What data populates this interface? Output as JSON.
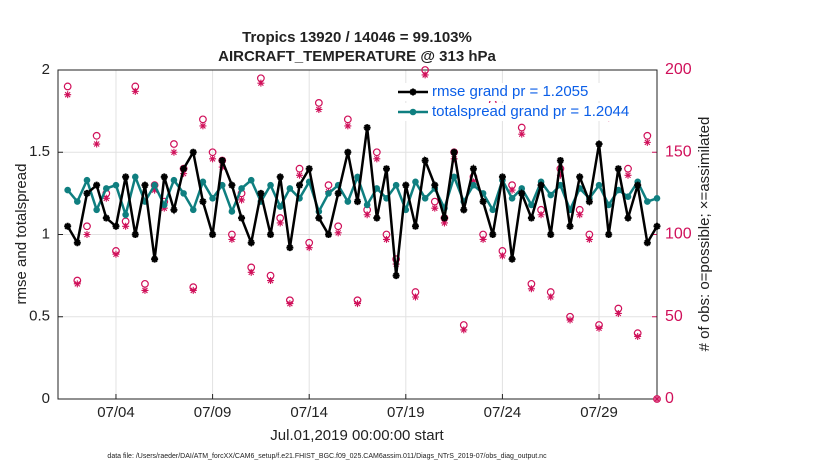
{
  "chart_data": {
    "type": "line",
    "title": "Tropics 13920 / 14046 = 99.103%",
    "subtitle": "AIRCRAFT_TEMPERATURE @ 313 hPa",
    "xlabel": "Jul.01,2019 00:00:00 start",
    "ylabel": "rmse and totalspread",
    "y2label": "# of obs: o=possible; ×=assimilated",
    "footnote": "data file: /Users/raeder/DAI/ATM_forcXX/CAM6_setup/f.e21.FHIST_BGC.f09_025.CAM6assim.011/Diags_NTrS_2019-07/obs_diag_output.nc",
    "xlim": [
      0,
      31
    ],
    "xticks": [
      {
        "value": 3,
        "label": "07/04"
      },
      {
        "value": 8,
        "label": "07/09"
      },
      {
        "value": 13,
        "label": "07/14"
      },
      {
        "value": 18,
        "label": "07/19"
      },
      {
        "value": 23,
        "label": "07/24"
      },
      {
        "value": 28,
        "label": "07/29"
      }
    ],
    "ylim": [
      0,
      2
    ],
    "yticks": [
      0,
      0.5,
      1,
      1.5,
      2
    ],
    "y2lim": [
      0,
      200
    ],
    "y2ticks": [
      0,
      50,
      100,
      150,
      200
    ],
    "grid": true,
    "legend": "northeast",
    "legend_text_color": "#0a5ee8",
    "x": [
      0.5,
      1,
      1.5,
      2,
      2.5,
      3,
      3.5,
      4,
      4.5,
      5,
      5.5,
      6,
      6.5,
      7,
      7.5,
      8,
      8.5,
      9,
      9.5,
      10,
      10.5,
      11,
      11.5,
      12,
      12.5,
      13,
      13.5,
      14,
      14.5,
      15,
      15.5,
      16,
      16.5,
      17,
      17.5,
      18,
      18.5,
      19,
      19.5,
      20,
      20.5,
      21,
      21.5,
      22,
      22.5,
      23,
      23.5,
      24,
      24.5,
      25,
      25.5,
      26,
      26.5,
      27,
      27.5,
      28,
      28.5,
      29,
      29.5,
      30,
      30.5,
      31
    ],
    "series": [
      {
        "name": "rmse grand pr = 1.2055",
        "color": "#000000",
        "marker": "star",
        "line": true,
        "values": [
          1.05,
          0.95,
          1.25,
          1.3,
          1.1,
          1.05,
          1.35,
          1.0,
          1.3,
          0.85,
          1.35,
          1.15,
          1.4,
          1.5,
          1.2,
          1.0,
          1.45,
          1.3,
          1.1,
          0.95,
          1.25,
          1.0,
          1.35,
          0.92,
          1.3,
          1.4,
          1.1,
          1.0,
          1.25,
          1.5,
          1.2,
          1.65,
          1.1,
          1.4,
          0.75,
          1.3,
          1.05,
          1.45,
          1.3,
          1.1,
          1.5,
          1.15,
          1.4,
          1.2,
          1.0,
          1.35,
          0.85,
          1.25,
          1.1,
          1.3,
          1.0,
          1.45,
          1.05,
          1.35,
          1.2,
          1.55,
          1.0,
          1.4,
          1.1,
          1.3,
          0.95,
          1.05
        ]
      },
      {
        "name": "totalspread grand pr = 1.2044",
        "color": "#0f7f80",
        "marker": "dot",
        "line": true,
        "values": [
          1.27,
          1.2,
          1.33,
          1.15,
          1.28,
          1.3,
          1.12,
          1.35,
          1.2,
          1.3,
          1.18,
          1.33,
          1.25,
          1.15,
          1.32,
          1.22,
          1.3,
          1.14,
          1.28,
          1.33,
          1.2,
          1.3,
          1.17,
          1.28,
          1.22,
          1.32,
          1.14,
          1.25,
          1.3,
          1.2,
          1.35,
          1.18,
          1.28,
          1.22,
          1.3,
          1.15,
          1.32,
          1.22,
          1.28,
          1.16,
          1.35,
          1.2,
          1.3,
          1.25,
          1.15,
          1.33,
          1.22,
          1.28,
          1.18,
          1.32,
          1.24,
          1.3,
          1.15,
          1.28,
          1.22,
          1.3,
          1.18,
          1.27,
          1.23,
          1.32,
          1.2,
          1.22
        ]
      },
      {
        "color": "#d0105a",
        "marker": "open-circle",
        "line": false,
        "axis": "y2",
        "values": [
          190,
          72,
          105,
          160,
          125,
          90,
          108,
          190,
          70,
          130,
          120,
          155,
          140,
          68,
          170,
          150,
          145,
          100,
          125,
          80,
          195,
          75,
          110,
          60,
          140,
          95,
          180,
          130,
          105,
          170,
          60,
          115,
          150,
          100,
          85,
          175,
          65,
          200,
          120,
          110,
          150,
          45,
          135,
          100,
          180,
          90,
          130,
          165,
          70,
          115,
          65,
          140,
          50,
          115,
          100,
          45,
          175,
          55,
          140,
          40,
          160,
          0
        ]
      },
      {
        "color": "#d0105a",
        "marker": "cross",
        "line": false,
        "axis": "y2",
        "values": [
          185,
          70,
          100,
          155,
          122,
          88,
          105,
          187,
          66,
          127,
          116,
          150,
          137,
          66,
          166,
          146,
          141,
          97,
          121,
          77,
          192,
          72,
          107,
          58,
          136,
          92,
          176,
          126,
          101,
          166,
          58,
          112,
          146,
          97,
          82,
          172,
          62,
          197,
          116,
          107,
          146,
          42,
          132,
          97,
          176,
          87,
          127,
          161,
          67,
          112,
          62,
          136,
          48,
          112,
          97,
          43,
          171,
          52,
          136,
          38,
          156,
          0
        ]
      }
    ]
  }
}
